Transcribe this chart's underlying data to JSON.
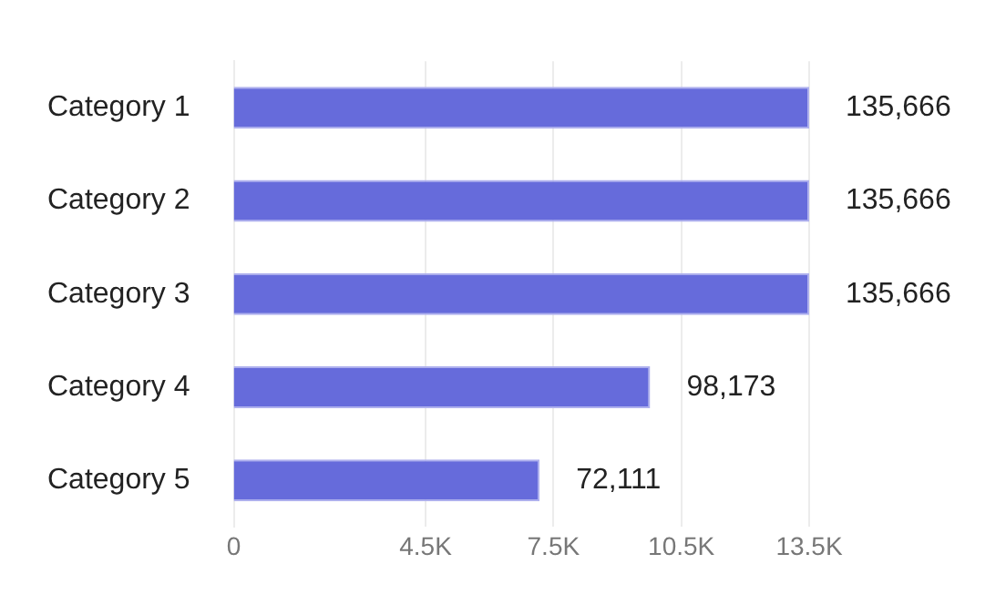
{
  "chart_data": {
    "type": "bar",
    "orientation": "horizontal",
    "categories": [
      "Category 1",
      "Category 2",
      "Category 3",
      "Category 4",
      "Category 5"
    ],
    "values": [
      135666,
      135666,
      135666,
      98173,
      72111
    ],
    "color": "#666bdb",
    "value_labels": [
      "135,666",
      "135,666",
      "135,666",
      "98,173",
      "72,111"
    ],
    "tick_labels": "y",
    "x2lim": [
      0,
      13500
    ],
    "x2ticks": [
      0,
      {
        "value": 4500,
        "label": "4.5K"
      },
      {
        "value": 7500,
        "label": "7.5K"
      },
      {
        "value": 10500,
        "label": "10.5K"
      },
      {
        "value": 13500,
        "label": "13.5K"
      }
    ],
    "grid": "x"
  }
}
